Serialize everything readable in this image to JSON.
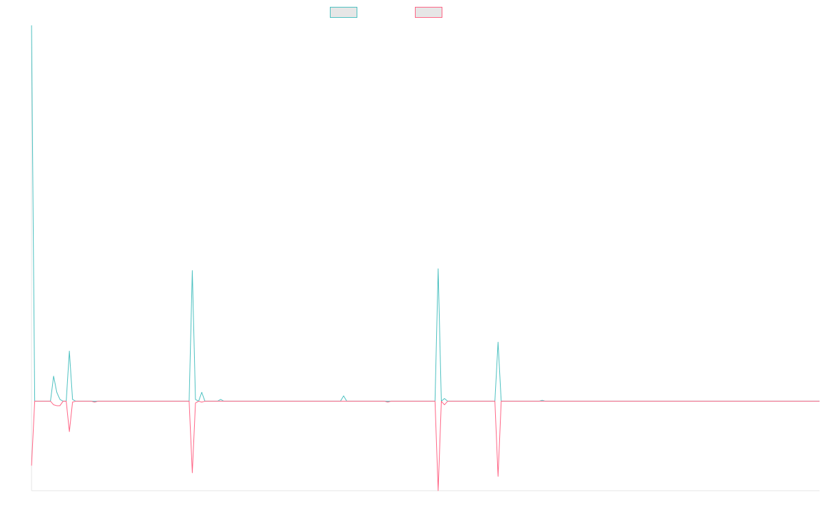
{
  "chart_data": {
    "type": "line",
    "title": "",
    "xlabel": "",
    "ylabel": "",
    "grid": false,
    "legend_position": "top-center",
    "x_count": 251,
    "ylim": [
      -5,
      21
    ],
    "series": [
      {
        "color": "#4bc0c0",
        "points": [
          [
            0,
            21
          ],
          [
            1,
            0
          ],
          [
            2,
            0
          ],
          [
            3,
            0
          ],
          [
            4,
            0
          ],
          [
            5,
            0
          ],
          [
            6,
            0
          ],
          [
            7,
            1.4
          ],
          [
            8,
            0.5
          ],
          [
            9,
            0.1
          ],
          [
            10,
            0
          ],
          [
            11,
            0
          ],
          [
            12,
            2.8
          ],
          [
            13,
            0.1
          ],
          [
            14,
            0
          ],
          [
            50,
            0
          ],
          [
            51,
            7.3
          ],
          [
            52,
            0.1
          ],
          [
            53,
            0
          ],
          [
            54,
            0.5
          ],
          [
            55,
            0
          ],
          [
            59,
            0
          ],
          [
            60,
            0.1
          ],
          [
            61,
            0
          ],
          [
            98,
            0
          ],
          [
            99,
            0.3
          ],
          [
            100,
            0
          ],
          [
            128,
            0
          ],
          [
            129,
            7.4
          ],
          [
            130,
            0
          ],
          [
            131,
            0.15
          ],
          [
            132,
            0
          ],
          [
            147,
            0
          ],
          [
            148,
            3.3
          ],
          [
            149,
            0
          ],
          [
            161,
            0
          ],
          [
            162,
            0.05
          ],
          [
            163,
            0
          ],
          [
            250,
            0
          ]
        ]
      },
      {
        "color": "#ff6384",
        "points": [
          [
            0,
            -3.6
          ],
          [
            1,
            0
          ],
          [
            2,
            0
          ],
          [
            3,
            0
          ],
          [
            4,
            0
          ],
          [
            5,
            0
          ],
          [
            6,
            0
          ],
          [
            7,
            -0.2
          ],
          [
            8,
            -0.25
          ],
          [
            9,
            -0.25
          ],
          [
            10,
            0
          ],
          [
            11,
            0
          ],
          [
            12,
            -1.7
          ],
          [
            13,
            -0.05
          ],
          [
            14,
            0
          ],
          [
            19,
            0
          ],
          [
            20,
            -0.05
          ],
          [
            21,
            0
          ],
          [
            50,
            0
          ],
          [
            51,
            -4.0
          ],
          [
            52,
            -0.1
          ],
          [
            53,
            0
          ],
          [
            54,
            -0.05
          ],
          [
            55,
            0
          ],
          [
            112,
            0
          ],
          [
            113,
            -0.05
          ],
          [
            114,
            0
          ],
          [
            128,
            0
          ],
          [
            129,
            -5.0
          ],
          [
            130,
            0
          ],
          [
            131,
            -0.2
          ],
          [
            132,
            0
          ],
          [
            147,
            0
          ],
          [
            148,
            -4.2
          ],
          [
            149,
            0
          ],
          [
            250,
            0
          ]
        ]
      }
    ]
  }
}
